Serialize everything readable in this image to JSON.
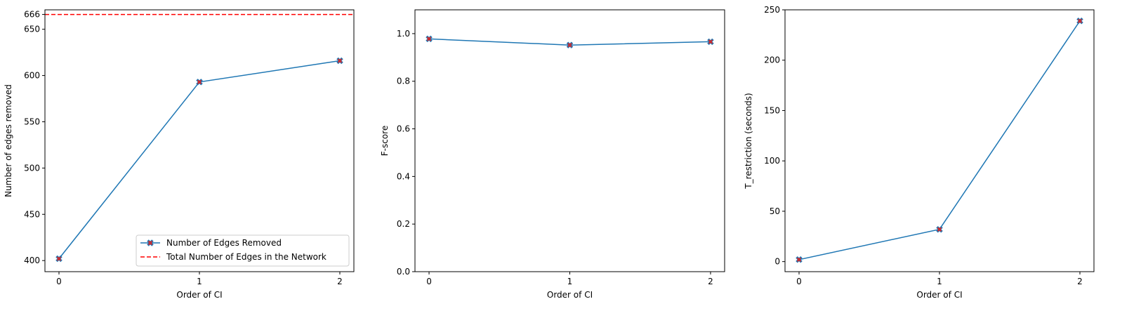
{
  "chart_data": [
    {
      "type": "line",
      "x": [
        0,
        1,
        2
      ],
      "xticks": [
        "0",
        "1",
        "2"
      ],
      "xlim": [
        -0.1,
        2.1
      ],
      "ylim": [
        388,
        671
      ],
      "yticks": [
        "400",
        "450",
        "500",
        "550",
        "600",
        "650",
        "666"
      ],
      "xlabel": "Order of CI",
      "ylabel": "Number of edges removed",
      "series": [
        {
          "name": "Number of Edges Removed",
          "values": [
            402,
            593,
            616
          ],
          "color": "#1f77b4",
          "marker": "x",
          "marker_color": "#d62728"
        }
      ],
      "reference_line": {
        "name": "Total Number of Edges in the Network",
        "y": 666,
        "color": "#ff0000",
        "style": "dashed"
      },
      "legend_position": "bottom-right",
      "grid": false
    },
    {
      "type": "line",
      "x": [
        0,
        1,
        2
      ],
      "xticks": [
        "0",
        "1",
        "2"
      ],
      "xlim": [
        -0.1,
        2.1
      ],
      "ylim": [
        0.0,
        1.1
      ],
      "yticks": [
        "0.0",
        "0.2",
        "0.4",
        "0.6",
        "0.8",
        "1.0"
      ],
      "xlabel": "Order of CI",
      "ylabel": "F-score",
      "series": [
        {
          "values": [
            0.978,
            0.952,
            0.966
          ],
          "color": "#1f77b4",
          "marker": "x",
          "marker_color": "#d62728"
        }
      ],
      "grid": false
    },
    {
      "type": "line",
      "x": [
        0,
        1,
        2
      ],
      "xticks": [
        "0",
        "1",
        "2"
      ],
      "xlim": [
        -0.1,
        2.1
      ],
      "ylim": [
        -10,
        250
      ],
      "yticks": [
        "0",
        "50",
        "100",
        "150",
        "200",
        "250"
      ],
      "xlabel": "Order of CI",
      "ylabel": "T_restriction (seconds)",
      "series": [
        {
          "values": [
            2,
            32,
            239
          ],
          "color": "#1f77b4",
          "marker": "x",
          "marker_color": "#d62728"
        }
      ],
      "grid": false
    }
  ]
}
